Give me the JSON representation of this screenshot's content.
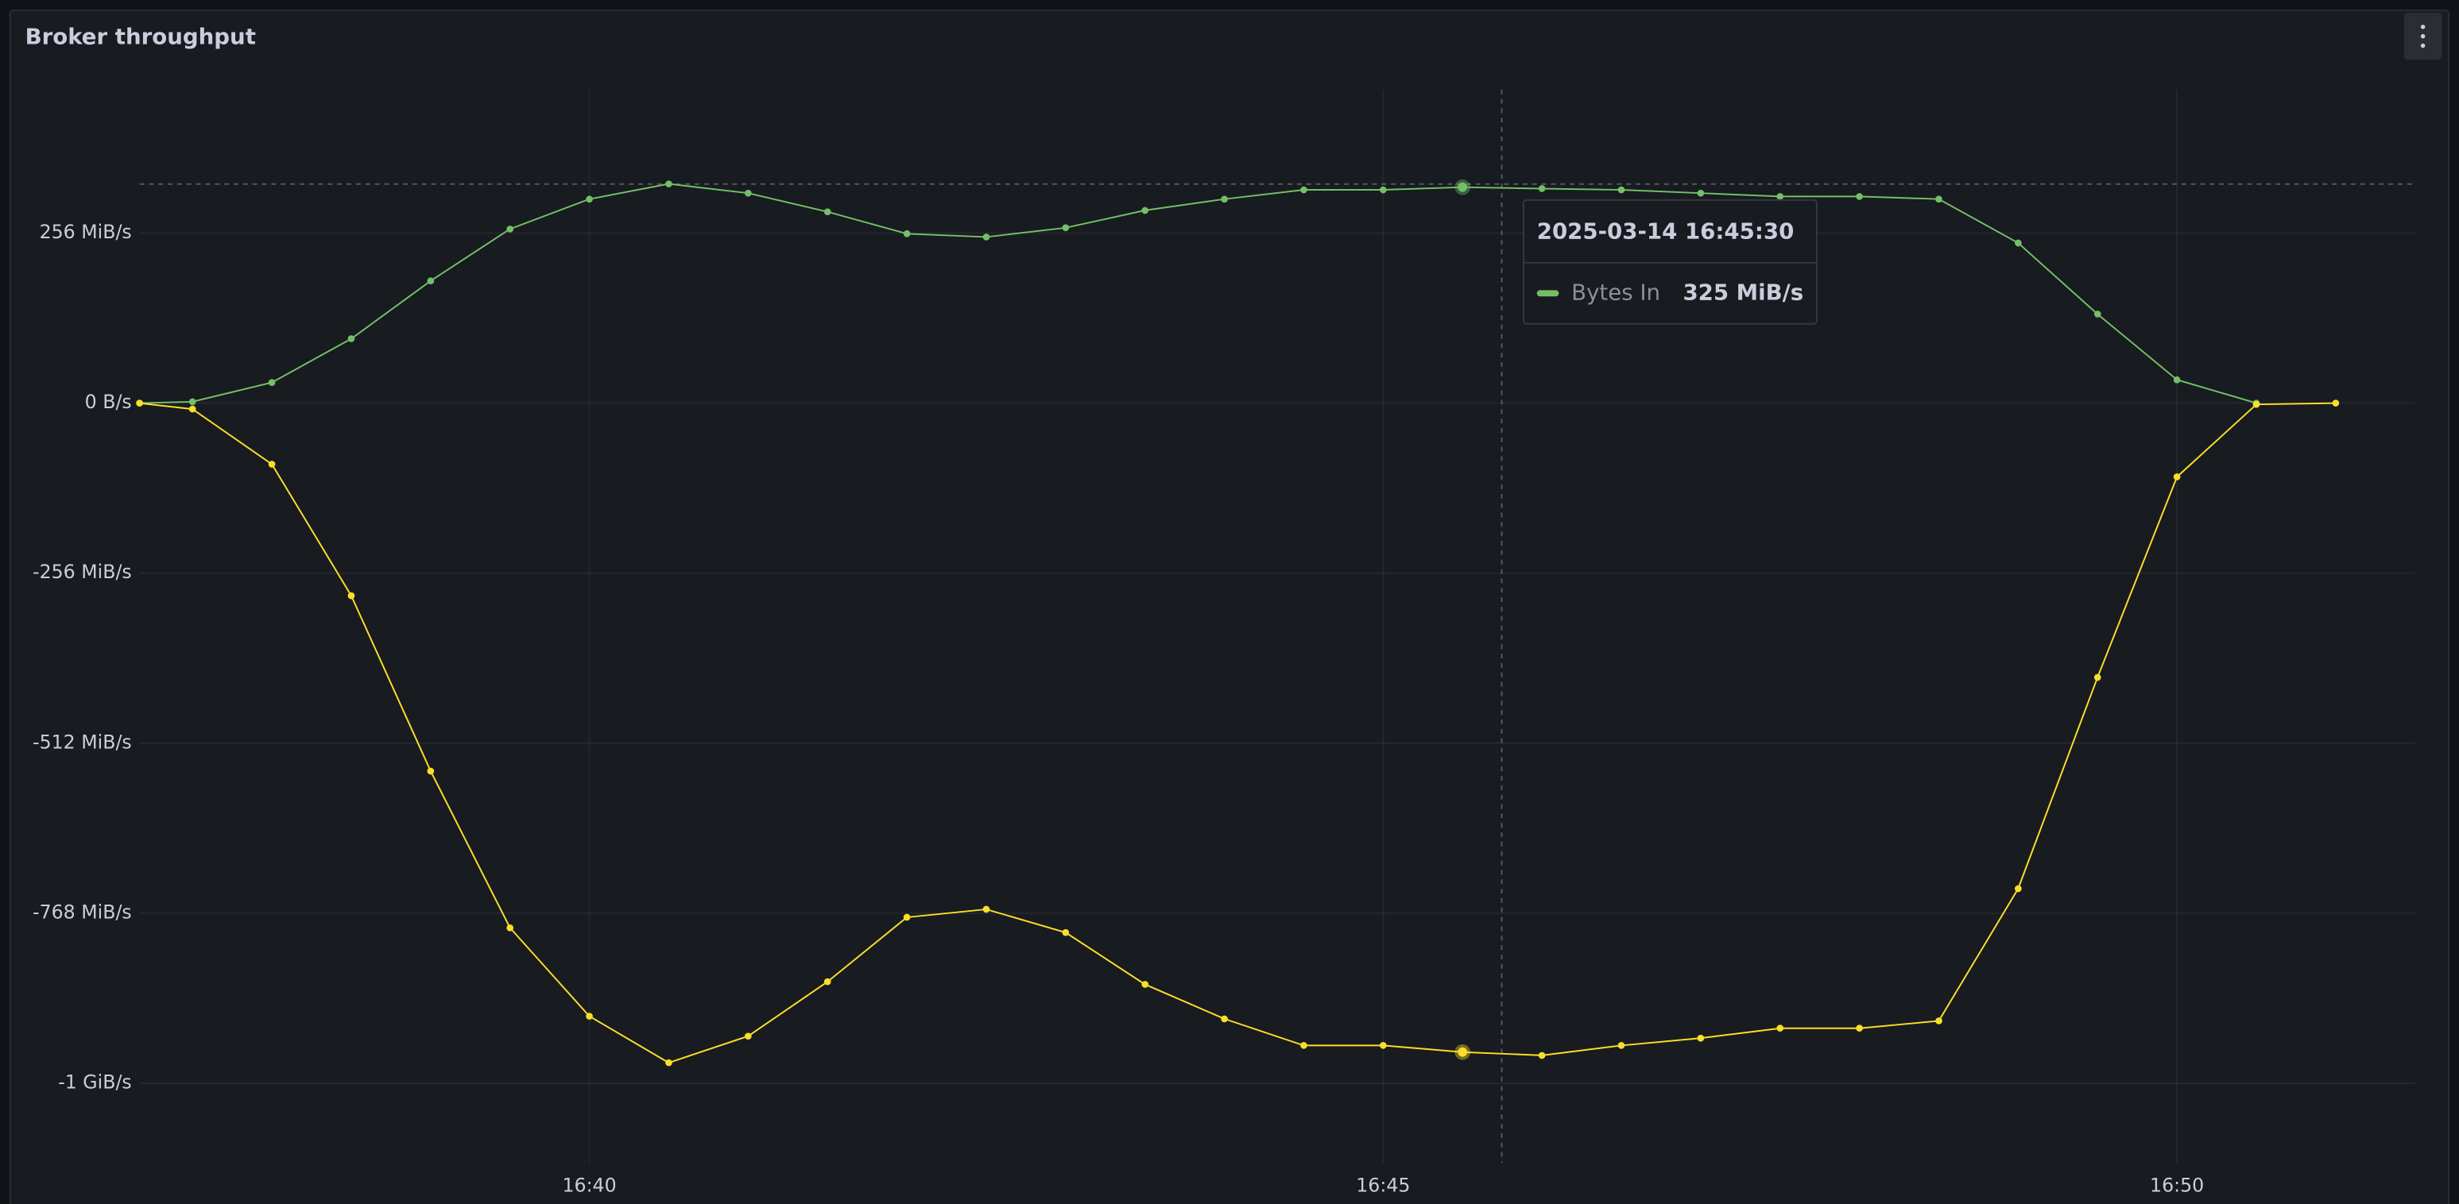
{
  "chart_data": {
    "type": "line",
    "title": "Broker throughput",
    "x": [
      "16:37:10",
      "16:37:30",
      "16:38:00",
      "16:38:30",
      "16:39:00",
      "16:39:30",
      "16:40:00",
      "16:40:30",
      "16:41:00",
      "16:41:30",
      "16:42:00",
      "16:42:30",
      "16:43:00",
      "16:43:30",
      "16:44:00",
      "16:44:30",
      "16:45:00",
      "16:45:30",
      "16:46:00",
      "16:46:30",
      "16:47:00",
      "16:47:30",
      "16:48:00",
      "16:48:30",
      "16:49:00",
      "16:49:30",
      "16:50:00",
      "16:50:30",
      "16:51:00"
    ],
    "series": [
      {
        "name": "Bytes In",
        "color": "#73bf69",
        "values": [
          0,
          2,
          31,
          97,
          184,
          262,
          307,
          330,
          316,
          288,
          255,
          250,
          264,
          290,
          307,
          321,
          321,
          325,
          323,
          321,
          316,
          311,
          311,
          307,
          241,
          134,
          35,
          0,
          null
        ]
      },
      {
        "color": "#fade2a",
        "values": [
          0,
          -9,
          -92,
          -290,
          -554,
          -790,
          -923,
          -993,
          -953,
          -871,
          -774,
          -762,
          -797,
          -875,
          -927,
          -967,
          -967,
          -977,
          -982,
          -967,
          -956,
          -941,
          -941,
          -930,
          -731,
          -413,
          -111,
          -2,
          0
        ]
      }
    ],
    "xlim": [
      "16:37:10",
      "16:51:30"
    ],
    "xticks": [
      "16:40",
      "16:45",
      "16:50"
    ],
    "ylim": [
      -1144,
      472
    ],
    "yticks": [
      {
        "value": 256,
        "label": "256 MiB/s"
      },
      {
        "value": 0,
        "label": "0 B/s"
      },
      {
        "value": -256,
        "label": "-256 MiB/s"
      },
      {
        "value": -512,
        "label": "-512 MiB/s"
      },
      {
        "value": -768,
        "label": "-768 MiB/s"
      },
      {
        "value": -1024,
        "label": "-1 GiB/s"
      }
    ],
    "grid": true,
    "tooltip": {
      "time": "2025-03-14 16:45:30",
      "value_label": "325 MiB/s"
    }
  }
}
